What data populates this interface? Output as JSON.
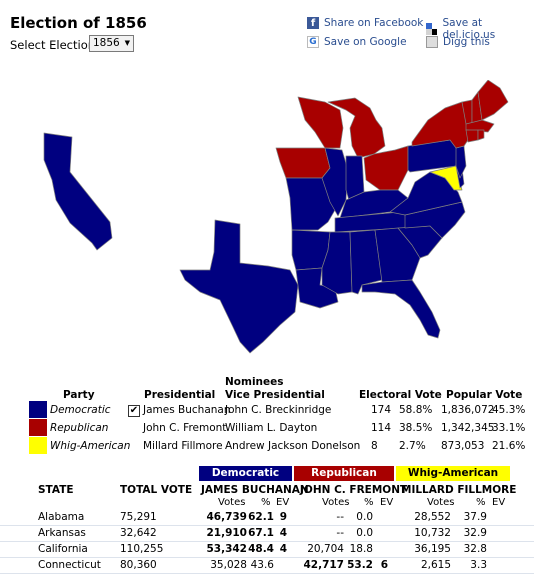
{
  "title": "Election of 1856",
  "select": {
    "label": "Select Election",
    "value": "1856"
  },
  "share": {
    "facebook": "Share on Facebook",
    "google": "Save on Google",
    "delicious": "Save at del.icio.us",
    "digg": "Digg this"
  },
  "colors": {
    "democratic": "#000080",
    "republican": "#a80000",
    "whig": "#ffff00",
    "state_border": "#7f7f7f"
  },
  "map": {
    "democratic_states": [
      "California",
      "Texas",
      "Louisiana",
      "Arkansas",
      "Mississippi",
      "Alabama",
      "Georgia",
      "Florida",
      "South Carolina",
      "North Carolina",
      "Virginia",
      "Tennessee",
      "Kentucky",
      "Missouri",
      "Illinois",
      "Indiana",
      "Pennsylvania",
      "New Jersey",
      "Delaware"
    ],
    "republican_states": [
      "Iowa",
      "Wisconsin",
      "Michigan",
      "Ohio",
      "New York",
      "Vermont",
      "New Hampshire",
      "Maine",
      "Massachusetts",
      "Connecticut",
      "Rhode Island"
    ],
    "whig_states": [
      "Maryland"
    ]
  },
  "nominees": {
    "header": "Nominees",
    "columns": {
      "party": "Party",
      "presidential": "Presidential",
      "vice": "Vice Presidential",
      "electoral": "Electoral Vote",
      "popular": "Popular Vote"
    },
    "rows": [
      {
        "party": "Democratic",
        "pres": "James Buchanan",
        "vp": "John C. Breckinridge",
        "ev": "174",
        "ev_pct": "58.8%",
        "pop": "1,836,072",
        "pop_pct": "45.3%",
        "winner": true
      },
      {
        "party": "Republican",
        "pres": "John C. Fremont",
        "vp": "William L. Dayton",
        "ev": "114",
        "ev_pct": "38.5%",
        "pop": "1,342,345",
        "pop_pct": "33.1%",
        "winner": false
      },
      {
        "party": "Whig-American",
        "pres": "Millard Fillmore",
        "vp": "Andrew Jackson Donelson",
        "ev": "8",
        "ev_pct": "2.7%",
        "pop": "873,053",
        "pop_pct": "21.6%",
        "winner": false
      }
    ],
    "check_glyph": "✔"
  },
  "results": {
    "bands": {
      "dem": "Democratic",
      "rep": "Republican",
      "whig": "Whig-American"
    },
    "columns": {
      "state": "STATE",
      "total": "TOTAL VOTE",
      "dem": "JAMES BUCHANAN",
      "rep": "JOHN C. FREMONT",
      "whig": "MILLARD FILLMORE"
    },
    "sub": {
      "votes": "Votes",
      "pct": "%",
      "ev": "EV"
    },
    "rows": [
      {
        "state": "Alabama",
        "total": "75,291",
        "dv": "46,739",
        "dp": "62.1",
        "de": "9",
        "rv": "--",
        "rp": "0.0",
        "re": "",
        "wv": "28,552",
        "wp": "37.9",
        "we": "",
        "win": "dem"
      },
      {
        "state": "Arkansas",
        "total": "32,642",
        "dv": "21,910",
        "dp": "67.1",
        "de": "4",
        "rv": "--",
        "rp": "0.0",
        "re": "",
        "wv": "10,732",
        "wp": "32.9",
        "we": "",
        "win": "dem"
      },
      {
        "state": "California",
        "total": "110,255",
        "dv": "53,342",
        "dp": "48.4",
        "de": "4",
        "rv": "20,704",
        "rp": "18.8",
        "re": "",
        "wv": "36,195",
        "wp": "32.8",
        "we": "",
        "win": "dem"
      },
      {
        "state": "Connecticut",
        "total": "80,360",
        "dv": "35,028",
        "dp": "43.6",
        "de": "",
        "rv": "42,717",
        "rp": "53.2",
        "re": "6",
        "wv": "2,615",
        "wp": "3.3",
        "we": "",
        "win": "rep"
      }
    ]
  }
}
